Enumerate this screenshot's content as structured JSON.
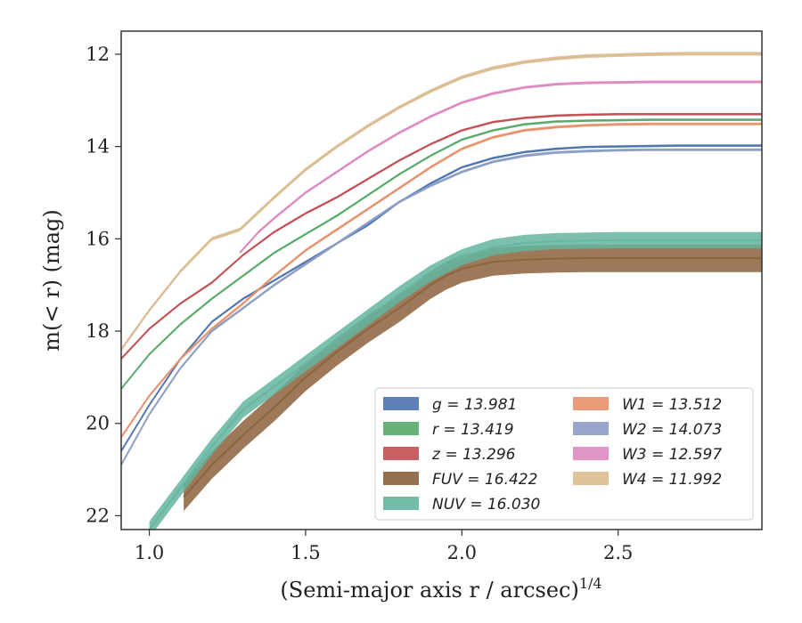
{
  "chart_data": {
    "type": "line",
    "title": "",
    "xlabel": "(Semi-major axis r / arcsec)",
    "xlabel_superscript": "1/4",
    "ylabel": "m(< r) (mag)",
    "xlim": [
      0.91,
      2.96
    ],
    "ylim": [
      22.3,
      11.5
    ],
    "y_inverted": true,
    "x_ticks": [
      1.0,
      1.5,
      2.0,
      2.5
    ],
    "x_tick_labels": [
      "1.0",
      "1.5",
      "2.0",
      "2.5"
    ],
    "y_ticks": [
      12,
      14,
      16,
      18,
      20,
      22
    ],
    "y_tick_labels": [
      "12",
      "14",
      "16",
      "18",
      "20",
      "22"
    ],
    "grid": false,
    "legend_placement": "lower-right",
    "series": [
      {
        "name": "g = 13.981",
        "color": "#4c72b0",
        "band": 0.05,
        "x": [
          0.91,
          1.0,
          1.1,
          1.2,
          1.3,
          1.4,
          1.5,
          1.6,
          1.7,
          1.8,
          1.9,
          2.0,
          2.1,
          2.2,
          2.3,
          2.4,
          2.5,
          2.6,
          2.7,
          2.8,
          2.96
        ],
        "y": [
          20.6,
          19.6,
          18.6,
          17.8,
          17.3,
          16.9,
          16.5,
          16.1,
          15.7,
          15.2,
          14.8,
          14.45,
          14.25,
          14.12,
          14.05,
          14.01,
          14.0,
          13.99,
          13.98,
          13.98,
          13.98
        ]
      },
      {
        "name": "r = 13.419",
        "color": "#55a868",
        "band": 0.05,
        "x": [
          0.91,
          1.0,
          1.1,
          1.2,
          1.3,
          1.4,
          1.5,
          1.6,
          1.7,
          1.8,
          1.9,
          2.0,
          2.1,
          2.2,
          2.3,
          2.4,
          2.5,
          2.6,
          2.7,
          2.8,
          2.96
        ],
        "y": [
          19.25,
          18.5,
          17.85,
          17.3,
          16.8,
          16.3,
          15.9,
          15.5,
          15.05,
          14.6,
          14.2,
          13.85,
          13.65,
          13.52,
          13.46,
          13.44,
          13.43,
          13.42,
          13.42,
          13.42,
          13.42
        ]
      },
      {
        "name": "z = 13.296",
        "color": "#c44e52",
        "band": 0.05,
        "x": [
          0.91,
          1.0,
          1.1,
          1.2,
          1.3,
          1.4,
          1.5,
          1.6,
          1.7,
          1.8,
          1.9,
          2.0,
          2.1,
          2.2,
          2.3,
          2.4,
          2.5,
          2.6,
          2.7,
          2.8,
          2.96
        ],
        "y": [
          18.6,
          17.95,
          17.4,
          16.95,
          16.35,
          15.85,
          15.45,
          15.1,
          14.7,
          14.3,
          13.95,
          13.65,
          13.47,
          13.38,
          13.33,
          13.31,
          13.3,
          13.3,
          13.3,
          13.3,
          13.3
        ]
      },
      {
        "name": "FUV = 16.422",
        "color": "#8c613c",
        "band": 0.6,
        "x": [
          1.11,
          1.2,
          1.3,
          1.4,
          1.5,
          1.6,
          1.7,
          1.8,
          1.9,
          1.95,
          2.0,
          2.1,
          2.2,
          2.3,
          2.4,
          2.5,
          2.6,
          2.7,
          2.96
        ],
        "y": [
          21.6,
          20.9,
          20.25,
          19.65,
          19.0,
          18.45,
          17.95,
          17.5,
          17.0,
          16.8,
          16.65,
          16.5,
          16.45,
          16.43,
          16.42,
          16.42,
          16.42,
          16.42,
          16.42
        ]
      },
      {
        "name": "NUV = 16.030",
        "color": "#64b5a0",
        "band": 0.35,
        "x": [
          1.0,
          1.1,
          1.2,
          1.3,
          1.4,
          1.5,
          1.6,
          1.7,
          1.8,
          1.9,
          2.0,
          2.1,
          2.2,
          2.3,
          2.4,
          2.5,
          2.6,
          2.96
        ],
        "y": [
          22.3,
          21.4,
          20.5,
          19.7,
          19.2,
          18.7,
          18.2,
          17.7,
          17.2,
          16.75,
          16.4,
          16.18,
          16.09,
          16.05,
          16.04,
          16.03,
          16.03,
          16.03
        ]
      },
      {
        "name": "W1 = 13.512",
        "color": "#e8906a",
        "band": 0.06,
        "x": [
          0.91,
          1.0,
          1.1,
          1.2,
          1.3,
          1.4,
          1.5,
          1.6,
          1.7,
          1.8,
          1.9,
          2.0,
          2.1,
          2.2,
          2.3,
          2.4,
          2.5,
          2.6,
          2.7,
          2.8,
          2.96
        ],
        "y": [
          20.3,
          19.4,
          18.6,
          17.95,
          17.4,
          16.8,
          16.25,
          15.8,
          15.35,
          14.9,
          14.45,
          14.05,
          13.8,
          13.65,
          13.58,
          13.54,
          13.52,
          13.51,
          13.51,
          13.51,
          13.51
        ]
      },
      {
        "name": "W2 = 14.073",
        "color": "#8c9cc4",
        "band": 0.06,
        "x": [
          0.91,
          1.0,
          1.1,
          1.2,
          1.3,
          1.4,
          1.5,
          1.6,
          1.7,
          1.8,
          1.9,
          2.0,
          2.1,
          2.2,
          2.3,
          2.4,
          2.5,
          2.6,
          2.7,
          2.8,
          2.96
        ],
        "y": [
          20.9,
          19.8,
          18.8,
          18.0,
          17.5,
          17.0,
          16.55,
          16.1,
          15.65,
          15.2,
          14.85,
          14.55,
          14.33,
          14.2,
          14.13,
          14.1,
          14.08,
          14.07,
          14.07,
          14.07,
          14.07
        ]
      },
      {
        "name": "W3 = 12.597",
        "color": "#dd8ac0",
        "band": 0.06,
        "x": [
          1.29,
          1.35,
          1.4,
          1.5,
          1.6,
          1.7,
          1.8,
          1.9,
          2.0,
          2.1,
          2.2,
          2.3,
          2.4,
          2.5,
          2.6,
          2.7,
          2.8,
          2.96
        ],
        "y": [
          16.3,
          15.85,
          15.55,
          15.0,
          14.55,
          14.1,
          13.7,
          13.35,
          13.05,
          12.85,
          12.72,
          12.65,
          12.62,
          12.61,
          12.6,
          12.6,
          12.6,
          12.6
        ]
      },
      {
        "name": "W4 = 11.992",
        "color": "#d9bb8f",
        "band": 0.08,
        "x": [
          0.91,
          1.0,
          1.1,
          1.2,
          1.29,
          1.4,
          1.5,
          1.6,
          1.7,
          1.8,
          1.9,
          2.0,
          2.1,
          2.2,
          2.3,
          2.4,
          2.5,
          2.6,
          2.7,
          2.8,
          2.96
        ],
        "y": [
          18.4,
          17.55,
          16.7,
          16.0,
          15.8,
          15.1,
          14.5,
          14.0,
          13.55,
          13.15,
          12.8,
          12.5,
          12.3,
          12.17,
          12.09,
          12.04,
          12.02,
          12.0,
          11.99,
          11.99,
          11.99
        ]
      }
    ]
  }
}
